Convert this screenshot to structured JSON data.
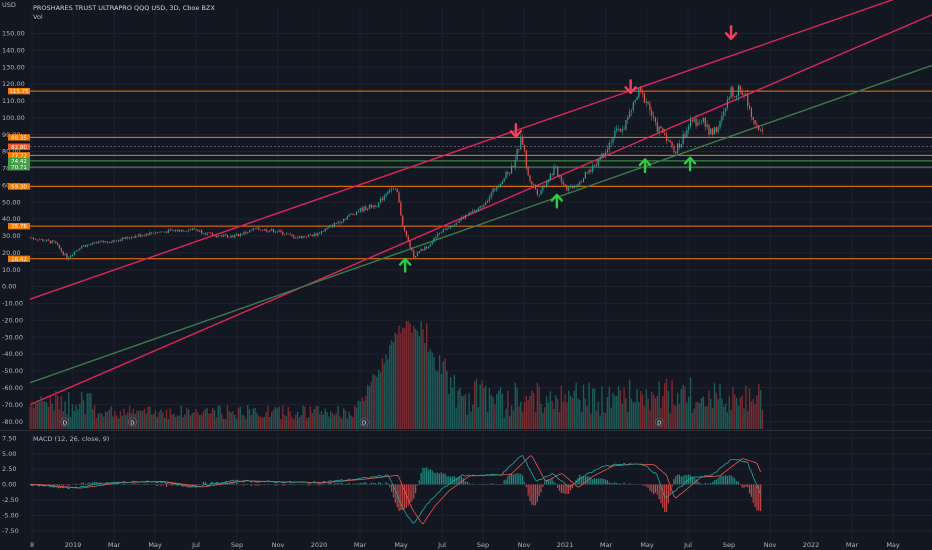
{
  "header": {
    "currency": "USD",
    "title": "PROSHARES TRUST ULTRAPRO QQQ USD, 3D, Cboe BZX",
    "vol_label": "Vol"
  },
  "macd": {
    "label": "MACD (12, 26, close, 9)"
  },
  "colors": {
    "background": "#131722",
    "grid": "#1e222d",
    "axis_text": "#b2b5be",
    "candle_up": "#26a69a",
    "candle_down": "#ef5350",
    "vol_up": "#1c5c58",
    "vol_down": "#7a2b30",
    "trend_red": "#e0255a",
    "trend_green": "#3b7a4a",
    "level_orange": "#f57c00",
    "level_green": "#43a047",
    "arrow_red": "#f23f5d",
    "arrow_green": "#2ecc40",
    "macd_line": "#26a69a",
    "signal_line": "#ef5350"
  },
  "chart_data": {
    "type": "candlestick",
    "title": "PROSHARES TRUST ULTRAPRO QQQ USD, 3D, Cboe BZX",
    "y_unit": "USD",
    "ylim": [
      -85,
      165
    ],
    "y_ticks": [
      "150.00",
      "140.00",
      "130.00",
      "120.00",
      "110.00",
      "100.00",
      "90.00",
      "80.00",
      "70.00",
      "60.00",
      "50.00",
      "40.00",
      "30.00",
      "20.00",
      "10.00",
      "0.00",
      "-10.00",
      "-20.00",
      "-30.00",
      "-40.00",
      "-50.00",
      "-60.00",
      "-70.00",
      "-80.00"
    ],
    "x_ticks": [
      "8",
      "2019",
      "Mar",
      "May",
      "Jul",
      "Sep",
      "Nov",
      "2020",
      "Mar",
      "May",
      "Jul",
      "Sep",
      "Nov",
      "2021",
      "Mar",
      "May",
      "Jul",
      "Sep",
      "Nov",
      "2022",
      "Mar",
      "May"
    ],
    "xlim": [
      0,
      44
    ],
    "price_anchors": [
      [
        0,
        29
      ],
      [
        1.2,
        26
      ],
      [
        1.8,
        17
      ],
      [
        2.5,
        24
      ],
      [
        4,
        27
      ],
      [
        6,
        32
      ],
      [
        8,
        34
      ],
      [
        9,
        30
      ],
      [
        10,
        30
      ],
      [
        11,
        34
      ],
      [
        12,
        33
      ],
      [
        13,
        29
      ],
      [
        14,
        31
      ],
      [
        15,
        38
      ],
      [
        16,
        45
      ],
      [
        17,
        49
      ],
      [
        17.5,
        58
      ],
      [
        17.9,
        56
      ],
      [
        18.2,
        35
      ],
      [
        18.7,
        18
      ],
      [
        19.4,
        24
      ],
      [
        20,
        32
      ],
      [
        21,
        40
      ],
      [
        22,
        47
      ],
      [
        22.8,
        60
      ],
      [
        23.5,
        70
      ],
      [
        24,
        88
      ],
      [
        24.3,
        65
      ],
      [
        24.8,
        55
      ],
      [
        25.6,
        70
      ],
      [
        26.2,
        58
      ],
      [
        26.8,
        62
      ],
      [
        27.4,
        70
      ],
      [
        28,
        80
      ],
      [
        28.5,
        90
      ],
      [
        29,
        95
      ],
      [
        29.7,
        115
      ],
      [
        30.1,
        110
      ],
      [
        30.5,
        95
      ],
      [
        31,
        90
      ],
      [
        31.4,
        80
      ],
      [
        31.7,
        84
      ],
      [
        32.1,
        95
      ],
      [
        32.7,
        100
      ],
      [
        33.1,
        92
      ],
      [
        33.6,
        94
      ],
      [
        34.2,
        115
      ],
      [
        34.8,
        116
      ],
      [
        35.3,
        100
      ],
      [
        35.8,
        88
      ]
    ],
    "price_levels": [
      {
        "value": 115.75,
        "label": "115.75",
        "color": "#f57c00"
      },
      {
        "value": 88.35,
        "label": "88.35",
        "color": "#f57c00"
      },
      {
        "value": 82.8,
        "label": "82.80",
        "color": "#f05a28"
      },
      {
        "value": 77.72,
        "label": "77.72",
        "color": "#f57c00"
      },
      {
        "value": 74.42,
        "label": "74.42",
        "color": "#43a047"
      },
      {
        "value": 70.71,
        "label": "70.71",
        "color": "#43a047"
      },
      {
        "value": 59.3,
        "label": "59.30",
        "color": "#f57c00"
      },
      {
        "value": 35.76,
        "label": "35.76",
        "color": "#f57c00"
      },
      {
        "value": 16.42,
        "label": "16.42",
        "color": "#f57c00"
      }
    ],
    "trendlines": [
      {
        "name": "upper-channel",
        "color": "#e0255a",
        "p1": [
          0,
          -7.5
        ],
        "p2": [
          44,
          178
        ]
      },
      {
        "name": "lower-channel",
        "color": "#e0255a",
        "p1": [
          0,
          -70
        ],
        "p2": [
          44,
          161
        ]
      },
      {
        "name": "green-support",
        "color": "#3b7a4a",
        "p1": [
          0,
          -57
        ],
        "p2": [
          44,
          131
        ]
      }
    ],
    "down_arrows": [
      [
        23.7,
        92
      ],
      [
        29.3,
        118
      ],
      [
        34.2,
        150
      ]
    ],
    "up_arrows": [
      [
        18.3,
        13
      ],
      [
        25.7,
        51
      ],
      [
        30.0,
        72
      ],
      [
        32.2,
        73
      ]
    ],
    "volume_peak_x": 18.4,
    "macd_y_ticks": [
      "7.50",
      "5.00",
      "2.50",
      "0.00",
      "-2.50",
      "-5.00",
      "-7.50"
    ],
    "macd_ylim": [
      -9,
      8.5
    ],
    "macd_anchors": [
      [
        0,
        0
      ],
      [
        2,
        -0.6
      ],
      [
        4,
        0.3
      ],
      [
        6,
        0.5
      ],
      [
        8,
        -0.4
      ],
      [
        10,
        0.6
      ],
      [
        12,
        0.4
      ],
      [
        14,
        0.3
      ],
      [
        16,
        0.9
      ],
      [
        17.5,
        1.5
      ],
      [
        18.2,
        -4
      ],
      [
        18.7,
        -6.5
      ],
      [
        19.3,
        -3.5
      ],
      [
        20,
        -1
      ],
      [
        21,
        1.4
      ],
      [
        22,
        1.5
      ],
      [
        23,
        1.6
      ],
      [
        24,
        4.8
      ],
      [
        24.7,
        0.5
      ],
      [
        25.5,
        1.8
      ],
      [
        26.3,
        -0.5
      ],
      [
        27,
        1.3
      ],
      [
        28,
        3
      ],
      [
        29,
        3.3
      ],
      [
        30,
        3.2
      ],
      [
        30.6,
        1.5
      ],
      [
        31,
        -2.3
      ],
      [
        31.5,
        -1
      ],
      [
        32.3,
        1.2
      ],
      [
        33.2,
        1.4
      ],
      [
        34.3,
        4.2
      ],
      [
        35,
        3.5
      ],
      [
        35.7,
        -2
      ]
    ]
  }
}
